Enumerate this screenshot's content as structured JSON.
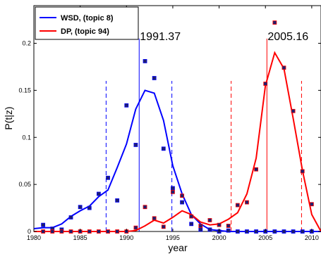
{
  "chart_data": {
    "type": "line",
    "title": "",
    "xlabel": "year",
    "ylabel": "P(t|z)",
    "xlim": [
      1980,
      2011
    ],
    "ylim": [
      0,
      0.24
    ],
    "x_ticks": [
      1980,
      1985,
      1990,
      1995,
      2000,
      2005,
      2010
    ],
    "x_tick_labels": [
      "1980",
      "1985",
      "1990",
      "1995",
      "2000",
      "2005",
      "2010"
    ],
    "y_ticks": [
      0,
      0.05,
      0.1,
      0.15,
      0.2
    ],
    "y_tick_labels": [
      "0",
      "0.05",
      "0.1",
      "0.15",
      "0.2"
    ],
    "grid": false,
    "legend": "top-left",
    "series": [
      {
        "name": "WSD, (topic 8)",
        "color": "#0000ff",
        "line_x": [
          1980,
          1981,
          1982,
          1983,
          1984,
          1985,
          1986,
          1987,
          1988,
          1989,
          1990,
          1991,
          1992,
          1993,
          1994,
          1995,
          1996,
          1997,
          1998,
          1999,
          2000,
          2001,
          2002,
          2003,
          2004,
          2005,
          2006,
          2007,
          2008,
          2009,
          2010,
          2011
        ],
        "line_y": [
          0.003,
          0.004,
          0.004,
          0.008,
          0.016,
          0.022,
          0.027,
          0.037,
          0.044,
          0.068,
          0.093,
          0.13,
          0.15,
          0.147,
          0.118,
          0.07,
          0.04,
          0.018,
          0.008,
          0.002,
          0.001,
          0,
          0,
          0,
          0,
          0,
          0,
          0,
          0,
          0,
          0,
          0
        ],
        "points_x": [
          1981,
          1982,
          1983,
          1984,
          1985,
          1986,
          1987,
          1988,
          1989,
          1990,
          1991,
          1992,
          1993,
          1994,
          1995,
          1996,
          1997,
          1998,
          1999,
          2000,
          2001,
          2002,
          2003,
          2004,
          2005,
          2006,
          2007,
          2008,
          2009,
          2010
        ],
        "points_y": [
          0.007,
          0.003,
          0.002,
          0.015,
          0.026,
          0.025,
          0.04,
          0.057,
          0.033,
          0.134,
          0.092,
          0.181,
          0.163,
          0.088,
          0.046,
          0.031,
          0.008,
          0.002,
          0.002,
          0,
          0.001,
          0,
          0,
          0,
          0,
          0,
          0,
          0,
          0,
          0
        ]
      },
      {
        "name": "DP, (topic 94)",
        "color": "#ff0000",
        "line_x": [
          1980,
          1981,
          1982,
          1983,
          1984,
          1985,
          1986,
          1987,
          1988,
          1989,
          1990,
          1991,
          1992,
          1993,
          1994,
          1995,
          1996,
          1997,
          1998,
          1999,
          2000,
          2001,
          2002,
          2003,
          2004,
          2005,
          2006,
          2007,
          2008,
          2009,
          2010,
          2011
        ],
        "line_y": [
          0,
          0,
          0,
          0,
          0,
          0,
          0,
          0,
          0,
          0,
          0,
          0.001,
          0.006,
          0.012,
          0.009,
          0.015,
          0.022,
          0.018,
          0.01,
          0.007,
          0.008,
          0.013,
          0.02,
          0.04,
          0.078,
          0.155,
          0.19,
          0.173,
          0.12,
          0.065,
          0.018,
          0
        ],
        "points_x": [
          1981,
          1982,
          1983,
          1984,
          1985,
          1986,
          1987,
          1988,
          1989,
          1990,
          1991,
          1992,
          1993,
          1994,
          1995,
          1996,
          1997,
          1998,
          1999,
          2000,
          2001,
          2002,
          2003,
          2004,
          2005,
          2006,
          2007,
          2008,
          2009,
          2010
        ],
        "points_y": [
          0,
          0,
          0,
          0,
          0,
          0,
          0,
          0,
          0,
          0,
          0.004,
          0.026,
          0.014,
          0.005,
          0.042,
          0.038,
          0.016,
          0.006,
          0.012,
          0.007,
          0.006,
          0.028,
          0.031,
          0.066,
          0.157,
          0.222,
          0.174,
          0.128,
          0.064,
          0.029
        ]
      }
    ],
    "annotations": [
      {
        "text": "1991.37",
        "color": "#0000ff",
        "mean": 1991.37,
        "bounds": [
          1987.8,
          1994.9
        ],
        "line_top": 0.205
      },
      {
        "text": "2005.16",
        "color": "#ff0000",
        "mean": 2005.16,
        "bounds": [
          2001.3,
          2008.9
        ],
        "line_top": 0.205
      }
    ]
  }
}
